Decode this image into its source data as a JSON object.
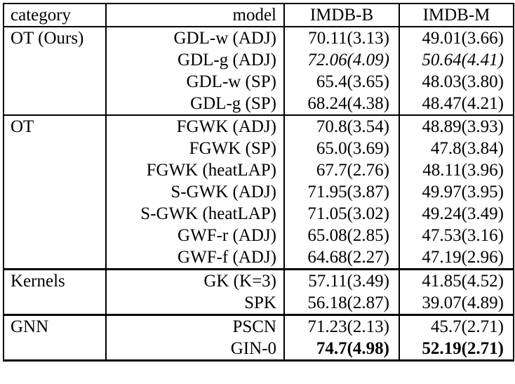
{
  "colors": {
    "text": "#000000",
    "background": "#ffffff",
    "border": "#000000"
  },
  "table": {
    "headers": {
      "category": "category",
      "model": "model",
      "imdb_b": "IMDB-B",
      "imdb_m": "IMDB-M"
    },
    "groups": [
      {
        "category": "OT (Ours)",
        "rows": [
          {
            "model": "GDL-w (ADJ)",
            "imdb_b": "70.11(3.13)",
            "imdb_m": "49.01(3.66)",
            "value_style": "normal"
          },
          {
            "model": "GDL-g (ADJ)",
            "imdb_b": "72.06(4.09)",
            "imdb_m": "50.64(4.41)",
            "value_style": "italic"
          },
          {
            "model": "GDL-w (SP)",
            "imdb_b": "65.4(3.65)",
            "imdb_m": "48.03(3.80)",
            "value_style": "normal"
          },
          {
            "model": "GDL-g (SP)",
            "imdb_b": "68.24(4.38)",
            "imdb_m": "48.47(4.21)",
            "value_style": "normal"
          }
        ]
      },
      {
        "category": "OT",
        "rows": [
          {
            "model": "FGWK (ADJ)",
            "imdb_b": "70.8(3.54)",
            "imdb_m": "48.89(3.93)",
            "value_style": "normal"
          },
          {
            "model": "FGWK (SP)",
            "imdb_b": "65.0(3.69)",
            "imdb_m": "47.8(3.84)",
            "value_style": "normal"
          },
          {
            "model": "FGWK (heatLAP)",
            "imdb_b": "67.7(2.76)",
            "imdb_m": "48.11(3.96)",
            "value_style": "normal"
          },
          {
            "model": "S-GWK (ADJ)",
            "imdb_b": "71.95(3.87)",
            "imdb_m": "49.97(3.95)",
            "value_style": "normal"
          },
          {
            "model": "S-GWK (heatLAP)",
            "imdb_b": "71.05(3.02)",
            "imdb_m": "49.24(3.49)",
            "value_style": "normal"
          },
          {
            "model": "GWF-r (ADJ)",
            "imdb_b": "65.08(2.85)",
            "imdb_m": "47.53(3.16)",
            "value_style": "normal"
          },
          {
            "model": "GWF-f (ADJ)",
            "imdb_b": "64.68(2.27)",
            "imdb_m": "47.19(2.96)",
            "value_style": "normal"
          }
        ]
      },
      {
        "category": "Kernels",
        "rows": [
          {
            "model": "GK (K=3)",
            "imdb_b": "57.11(3.49)",
            "imdb_m": "41.85(4.52)",
            "value_style": "normal"
          },
          {
            "model": "SPK",
            "imdb_b": "56.18(2.87)",
            "imdb_m": "39.07(4.89)",
            "value_style": "normal"
          }
        ]
      },
      {
        "category": "GNN",
        "rows": [
          {
            "model": "PSCN",
            "imdb_b": "71.23(2.13)",
            "imdb_m": "45.7(2.71)",
            "value_style": "normal"
          },
          {
            "model": "GIN-0",
            "imdb_b": "74.7(4.98)",
            "imdb_m": "52.19(2.71)",
            "value_style": "bold"
          }
        ]
      }
    ]
  }
}
